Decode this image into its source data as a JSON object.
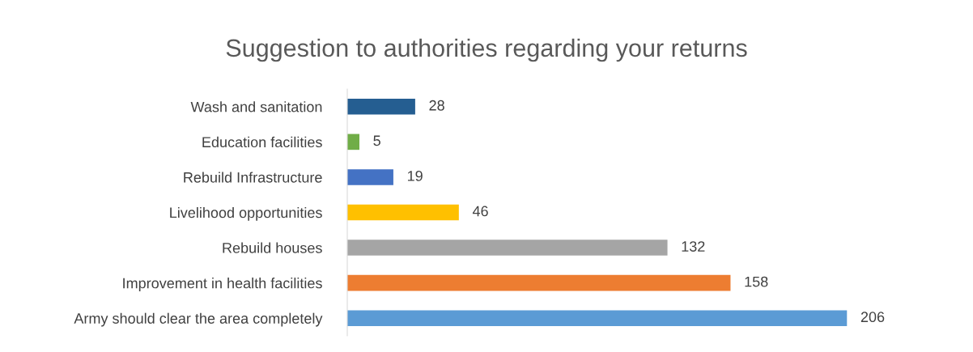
{
  "chart_data": {
    "type": "bar",
    "orientation": "horizontal",
    "title": "Suggestion to authorities regarding your returns",
    "categories": [
      "Wash and sanitation",
      "Education facilities",
      "Rebuild Infrastructure",
      "Livelihood opportunities",
      "Rebuild houses",
      "Improvement in health facilities",
      "Army should clear the area completely"
    ],
    "values": [
      28,
      5,
      19,
      46,
      132,
      158,
      206
    ],
    "colors": [
      "#255e91",
      "#70ad47",
      "#4472c4",
      "#ffc000",
      "#a5a5a5",
      "#ed7d31",
      "#5b9bd5"
    ],
    "data_labels": true,
    "grid": false,
    "legend": false
  }
}
